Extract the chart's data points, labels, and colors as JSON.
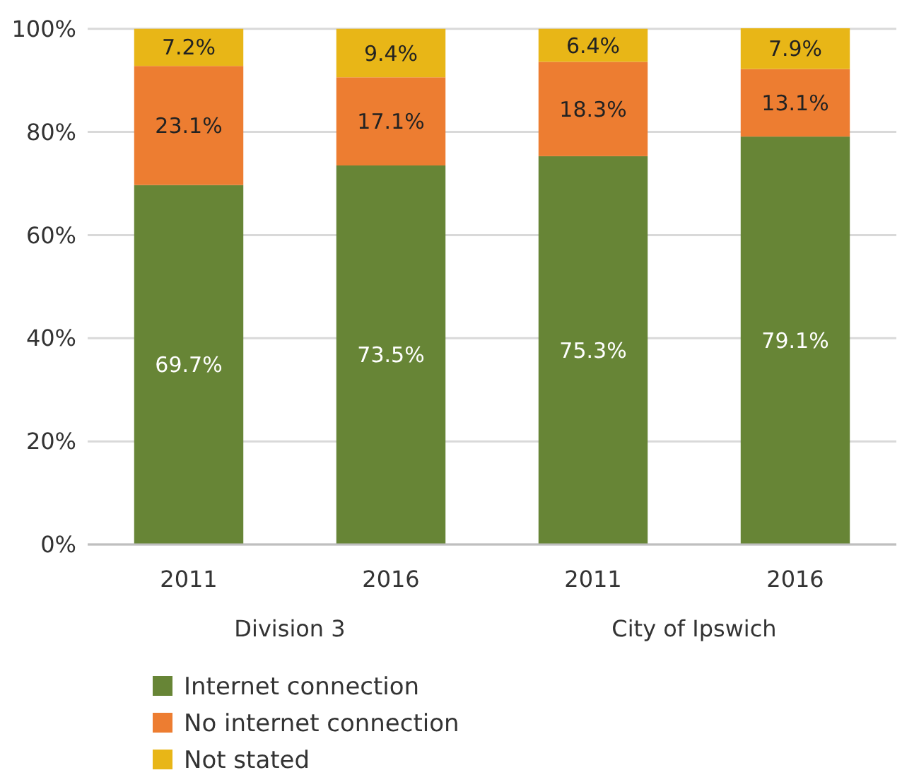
{
  "chart_data": {
    "type": "bar",
    "stacked": true,
    "categories": [
      "2011",
      "2016",
      "2011",
      "2016"
    ],
    "annotations": [
      "Division 3",
      "City of Ipswich"
    ],
    "series": [
      {
        "name": "Internet connection",
        "color": "#678536",
        "values": [
          69.7,
          73.5,
          75.3,
          79.1
        ],
        "value_labels": [
          "69.7%",
          "73.5%",
          "75.3%",
          "79.1%"
        ]
      },
      {
        "name": "No internet connection",
        "color": "#ed7d31",
        "values": [
          23.1,
          17.1,
          18.3,
          13.1
        ],
        "value_labels": [
          "23.1%",
          "17.1%",
          "18.3%",
          "13.1%"
        ]
      },
      {
        "name": "Not stated",
        "color": "#e8b617",
        "values": [
          7.2,
          9.4,
          6.4,
          7.9
        ],
        "value_labels": [
          "7.2%",
          "9.4%",
          "6.4%",
          "7.9%"
        ]
      }
    ],
    "ylim": [
      0,
      100.1
    ],
    "yticks": [
      {
        "value": 0,
        "label": "0%"
      },
      {
        "value": 20,
        "label": "20%"
      },
      {
        "value": 40,
        "label": "40%"
      },
      {
        "value": 60,
        "label": "60%"
      },
      {
        "value": 80,
        "label": "80%"
      },
      {
        "value": 100,
        "label": "100%"
      }
    ],
    "grid": "y",
    "legend": "bottom left"
  }
}
